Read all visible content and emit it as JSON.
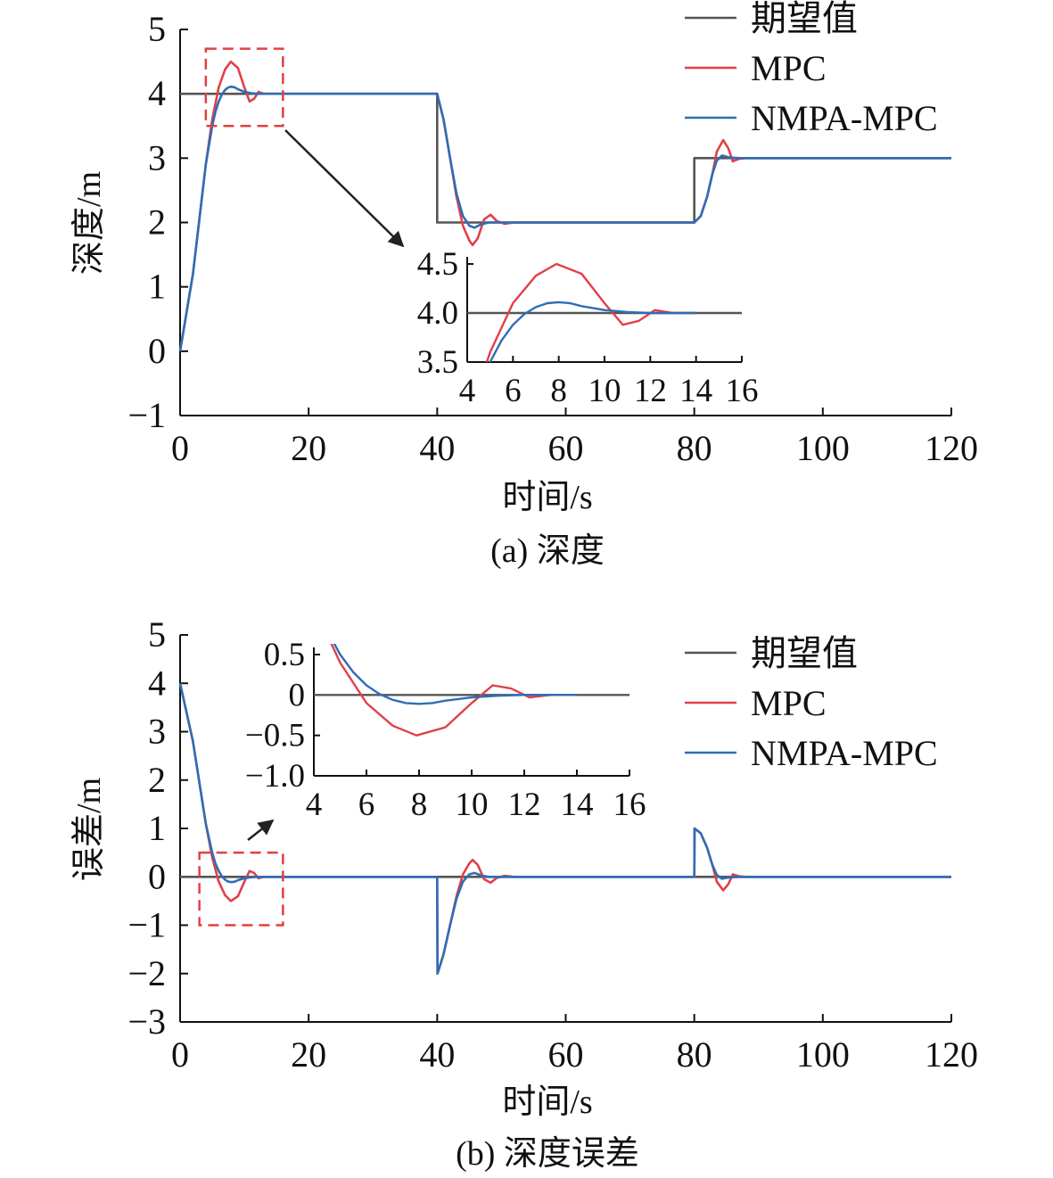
{
  "colors": {
    "desired": "#555555",
    "mpc": "#e0404a",
    "nmpa": "#2f6db5",
    "zoom_box": "#e04040",
    "arrow": "#222222"
  },
  "legend": {
    "desired": "期望值",
    "mpc": "MPC",
    "nmpa": "NMPA-MPC"
  },
  "chart_data": [
    {
      "type": "line",
      "caption": "(a) 深度",
      "xlabel": "时间/s",
      "ylabel": "深度/m",
      "xlim": [
        0,
        120
      ],
      "ylim": [
        -1,
        5
      ],
      "xticks": [
        "0",
        "20",
        "40",
        "60",
        "80",
        "100",
        "120"
      ],
      "yticks": [
        "−1",
        "0",
        "1",
        "2",
        "3",
        "4",
        "5"
      ],
      "legend_position": "top-right",
      "series": [
        {
          "name": "期望值",
          "x": [
            0,
            40,
            40,
            80,
            80,
            120
          ],
          "y": [
            4,
            4,
            2,
            2,
            3,
            3
          ]
        },
        {
          "name": "MPC",
          "x": [
            0,
            2,
            4,
            5,
            6,
            7,
            7.9,
            9,
            10,
            10.8,
            11.5,
            12.2,
            13,
            14,
            40,
            41,
            42,
            43,
            44,
            45,
            45.5,
            46.3,
            47.3,
            48.3,
            49.3,
            50.5,
            52,
            80,
            81,
            82,
            82.8,
            83.5,
            84.5,
            85.3,
            86,
            87,
            88,
            120
          ],
          "y": [
            0,
            1.2,
            2.9,
            3.6,
            4.1,
            4.38,
            4.5,
            4.4,
            4.1,
            3.88,
            3.92,
            4.03,
            4.0,
            4.0,
            4.0,
            3.6,
            3.0,
            2.4,
            1.95,
            1.72,
            1.65,
            1.75,
            2.05,
            2.12,
            2.02,
            1.98,
            2.0,
            2.0,
            2.1,
            2.4,
            2.75,
            3.1,
            3.28,
            3.15,
            2.95,
            2.99,
            3.0,
            3.0
          ]
        },
        {
          "name": "NMPA-MPC",
          "x": [
            0,
            2,
            4,
            5,
            5.5,
            6,
            6.5,
            7,
            7.5,
            8,
            8.5,
            9,
            10,
            11,
            12,
            14,
            40,
            41,
            42,
            43,
            44,
            45,
            45.8,
            46.8,
            48,
            50,
            80,
            81,
            82,
            82.8,
            83.5,
            84.3,
            85.5,
            87,
            120
          ],
          "y": [
            0,
            1.2,
            2.9,
            3.5,
            3.72,
            3.88,
            3.99,
            4.06,
            4.1,
            4.11,
            4.1,
            4.07,
            4.03,
            4.01,
            4.0,
            4.0,
            4.0,
            3.6,
            3.0,
            2.45,
            2.1,
            1.95,
            1.92,
            1.97,
            2.0,
            2.0,
            2.0,
            2.1,
            2.4,
            2.75,
            2.96,
            3.04,
            3.01,
            3.0,
            3.0
          ]
        }
      ],
      "inset": {
        "xlim": [
          4,
          16
        ],
        "ylim": [
          3.5,
          4.5
        ],
        "xticks": [
          "4",
          "6",
          "8",
          "10",
          "12",
          "14",
          "16"
        ],
        "yticks": [
          "3.5",
          "4.0",
          "4.5"
        ],
        "zoom_box": {
          "x": [
            4,
            16
          ],
          "y": [
            3.5,
            4.7
          ]
        }
      }
    },
    {
      "type": "line",
      "caption": "(b) 深度误差",
      "xlabel": "时间/s",
      "ylabel": "误差/m",
      "xlim": [
        0,
        120
      ],
      "ylim": [
        -3,
        5
      ],
      "xticks": [
        "0",
        "20",
        "40",
        "60",
        "80",
        "100",
        "120"
      ],
      "yticks": [
        "−3",
        "−2",
        "−1",
        "0",
        "1",
        "2",
        "3",
        "4",
        "5"
      ],
      "legend_position": "top-right",
      "series": [
        {
          "name": "期望值",
          "x": [
            0,
            120
          ],
          "y": [
            0,
            0
          ]
        },
        {
          "name": "MPC",
          "x": [
            0,
            2,
            4,
            5,
            6,
            7,
            7.9,
            9,
            10,
            10.8,
            11.5,
            12.2,
            13,
            14,
            40,
            40.05,
            41,
            42,
            43,
            44,
            45,
            45.5,
            46.3,
            47.3,
            48.3,
            49.3,
            50.5,
            52,
            80,
            80.05,
            81,
            82,
            82.8,
            83.5,
            84.5,
            85.3,
            86,
            87,
            88,
            120
          ],
          "y": [
            4,
            2.8,
            1.1,
            0.4,
            -0.1,
            -0.38,
            -0.5,
            -0.4,
            -0.1,
            0.12,
            0.08,
            -0.03,
            0,
            0,
            0,
            -2,
            -1.6,
            -1.0,
            -0.4,
            0.05,
            0.28,
            0.35,
            0.25,
            -0.05,
            -0.12,
            -0.02,
            0.02,
            0,
            0,
            1,
            0.9,
            0.6,
            0.25,
            -0.1,
            -0.28,
            -0.15,
            0.05,
            0.01,
            0,
            0
          ]
        },
        {
          "name": "NMPA-MPC",
          "x": [
            0,
            2,
            4,
            5,
            5.5,
            6,
            6.5,
            7,
            7.5,
            8,
            8.5,
            9,
            10,
            11,
            12,
            14,
            40,
            40.05,
            41,
            42,
            43,
            44,
            45,
            45.8,
            46.8,
            48,
            50,
            80,
            80.05,
            81,
            82,
            82.8,
            83.5,
            84.3,
            85.5,
            87,
            120
          ],
          "y": [
            4,
            2.8,
            1.1,
            0.5,
            0.28,
            0.12,
            0.01,
            -0.06,
            -0.1,
            -0.11,
            -0.1,
            -0.07,
            -0.03,
            -0.01,
            0,
            0,
            0,
            -2,
            -1.6,
            -1.0,
            -0.45,
            -0.1,
            0.05,
            0.08,
            0.03,
            0,
            0,
            0,
            1,
            0.9,
            0.6,
            0.25,
            0.04,
            -0.04,
            -0.01,
            0,
            0
          ]
        }
      ],
      "inset": {
        "xlim": [
          4,
          16
        ],
        "ylim": [
          -1.0,
          0.5
        ],
        "xticks": [
          "4",
          "6",
          "8",
          "10",
          "12",
          "14",
          "16"
        ],
        "yticks": [
          "−1.0",
          "−0.5",
          "0",
          "0.5"
        ],
        "zoom_box": {
          "x": [
            3,
            16
          ],
          "y": [
            -1,
            0.5
          ]
        }
      }
    }
  ]
}
